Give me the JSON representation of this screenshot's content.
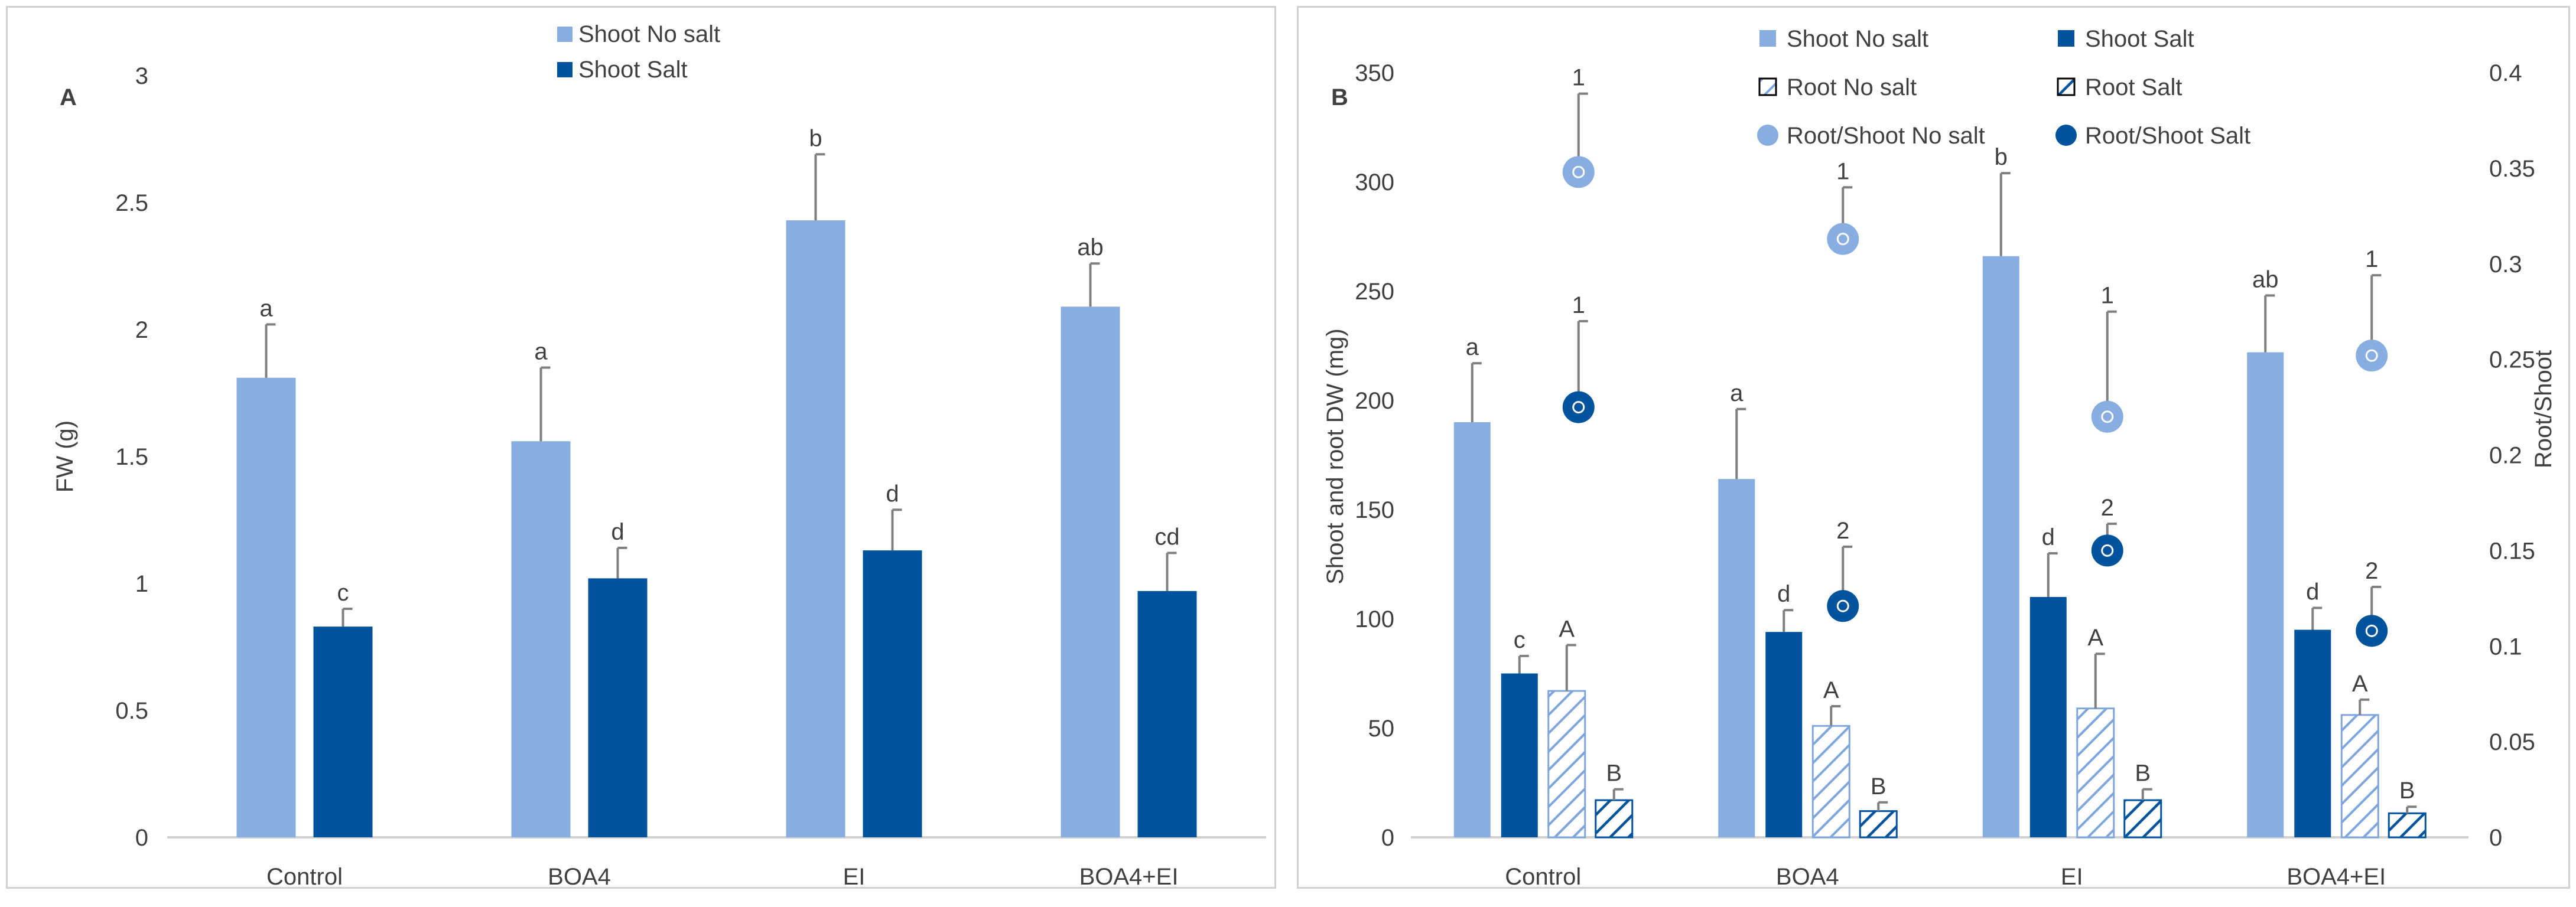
{
  "colors": {
    "shoot_no_salt": "#87ADE1",
    "shoot_salt": "#00539C",
    "hatch": "#7EA6DD",
    "text": "#404040",
    "axis": "#D0D0D0",
    "error": "#7f7f7f"
  },
  "chart_data": [
    {
      "panel": "A",
      "type": "bar",
      "panel_label": "A",
      "title": "",
      "ylabel": "FW (g)",
      "xlabel": "",
      "ylim": [
        0,
        3
      ],
      "yticks": [
        "0",
        "0.5",
        "1",
        "1.5",
        "2",
        "2.5",
        "3"
      ],
      "yticks_values": [
        0,
        0.5,
        1,
        1.5,
        2,
        2.5,
        3
      ],
      "categories": [
        "Control",
        "BOA4",
        "EI",
        "BOA4+EI"
      ],
      "legend": [
        "Shoot No salt",
        "Shoot Salt"
      ],
      "series": [
        {
          "name": "Shoot No salt",
          "values": [
            1.81,
            1.56,
            2.43,
            2.09
          ],
          "errors": [
            0.21,
            0.29,
            0.26,
            0.17
          ],
          "letters": [
            "a",
            "a",
            "b",
            "ab"
          ]
        },
        {
          "name": "Shoot Salt",
          "values": [
            0.83,
            1.02,
            1.13,
            0.97
          ],
          "errors": [
            0.07,
            0.12,
            0.16,
            0.15
          ],
          "letters": [
            "c",
            "d",
            "d",
            "cd"
          ]
        }
      ]
    },
    {
      "panel": "B",
      "type": "bar",
      "panel_label": "B",
      "title": "",
      "ylabel": "Shoot and root  DW (mg)",
      "y2label": "Root/Shoot",
      "xlabel": "",
      "ylim": [
        0,
        350
      ],
      "y2lim": [
        0,
        0.4
      ],
      "yticks": [
        "0",
        "50",
        "100",
        "150",
        "200",
        "250",
        "300",
        "350"
      ],
      "yticks_values": [
        0,
        50,
        100,
        150,
        200,
        250,
        300,
        350
      ],
      "y2ticks": [
        "0",
        "0.05",
        "0.1",
        "0.15",
        "0.2",
        "0.25",
        "0.3",
        "0.35",
        "0.4"
      ],
      "y2ticks_values": [
        0,
        0.05,
        0.1,
        0.15,
        0.2,
        0.25,
        0.3,
        0.35,
        0.4
      ],
      "categories": [
        "Control",
        "BOA4",
        "EI",
        "BOA4+EI"
      ],
      "legend": [
        "Shoot No salt",
        "Shoot Salt",
        "Root No salt",
        "Root Salt",
        "Root/Shoot No salt",
        "Root/Shoot Salt"
      ],
      "series": [
        {
          "name": "Shoot No salt",
          "values": [
            190,
            164,
            266,
            222
          ],
          "errors": [
            27,
            32,
            38,
            26
          ],
          "letters": [
            "a",
            "a",
            "b",
            "ab"
          ]
        },
        {
          "name": "Shoot Salt",
          "values": [
            75,
            94,
            110,
            95
          ],
          "errors": [
            8,
            10,
            20,
            10
          ],
          "letters": [
            "c",
            "d",
            "d",
            "d"
          ]
        },
        {
          "name": "Root No salt",
          "values": [
            67,
            51,
            59,
            56
          ],
          "errors": [
            21,
            9,
            25,
            7
          ],
          "letters": [
            "A",
            "A",
            "A",
            "A"
          ]
        },
        {
          "name": "Root Salt",
          "values": [
            17,
            12,
            17,
            11
          ],
          "errors": [
            5,
            4,
            5,
            3
          ],
          "letters": [
            "B",
            "B",
            "B",
            "B"
          ]
        }
      ],
      "ratio_series": [
        {
          "name": "Root/Shoot No salt",
          "values": [
            0.348,
            0.313,
            0.22,
            0.252
          ],
          "errors": [
            0.041,
            0.027,
            0.055,
            0.042
          ],
          "letters": [
            "1",
            "1",
            "1",
            "1"
          ]
        },
        {
          "name": "Root/Shoot Salt",
          "values": [
            0.225,
            0.121,
            0.15,
            0.108
          ],
          "errors": [
            0.045,
            0.031,
            0.014,
            0.023
          ],
          "letters": [
            "1",
            "2",
            "2",
            "2"
          ]
        }
      ]
    }
  ]
}
